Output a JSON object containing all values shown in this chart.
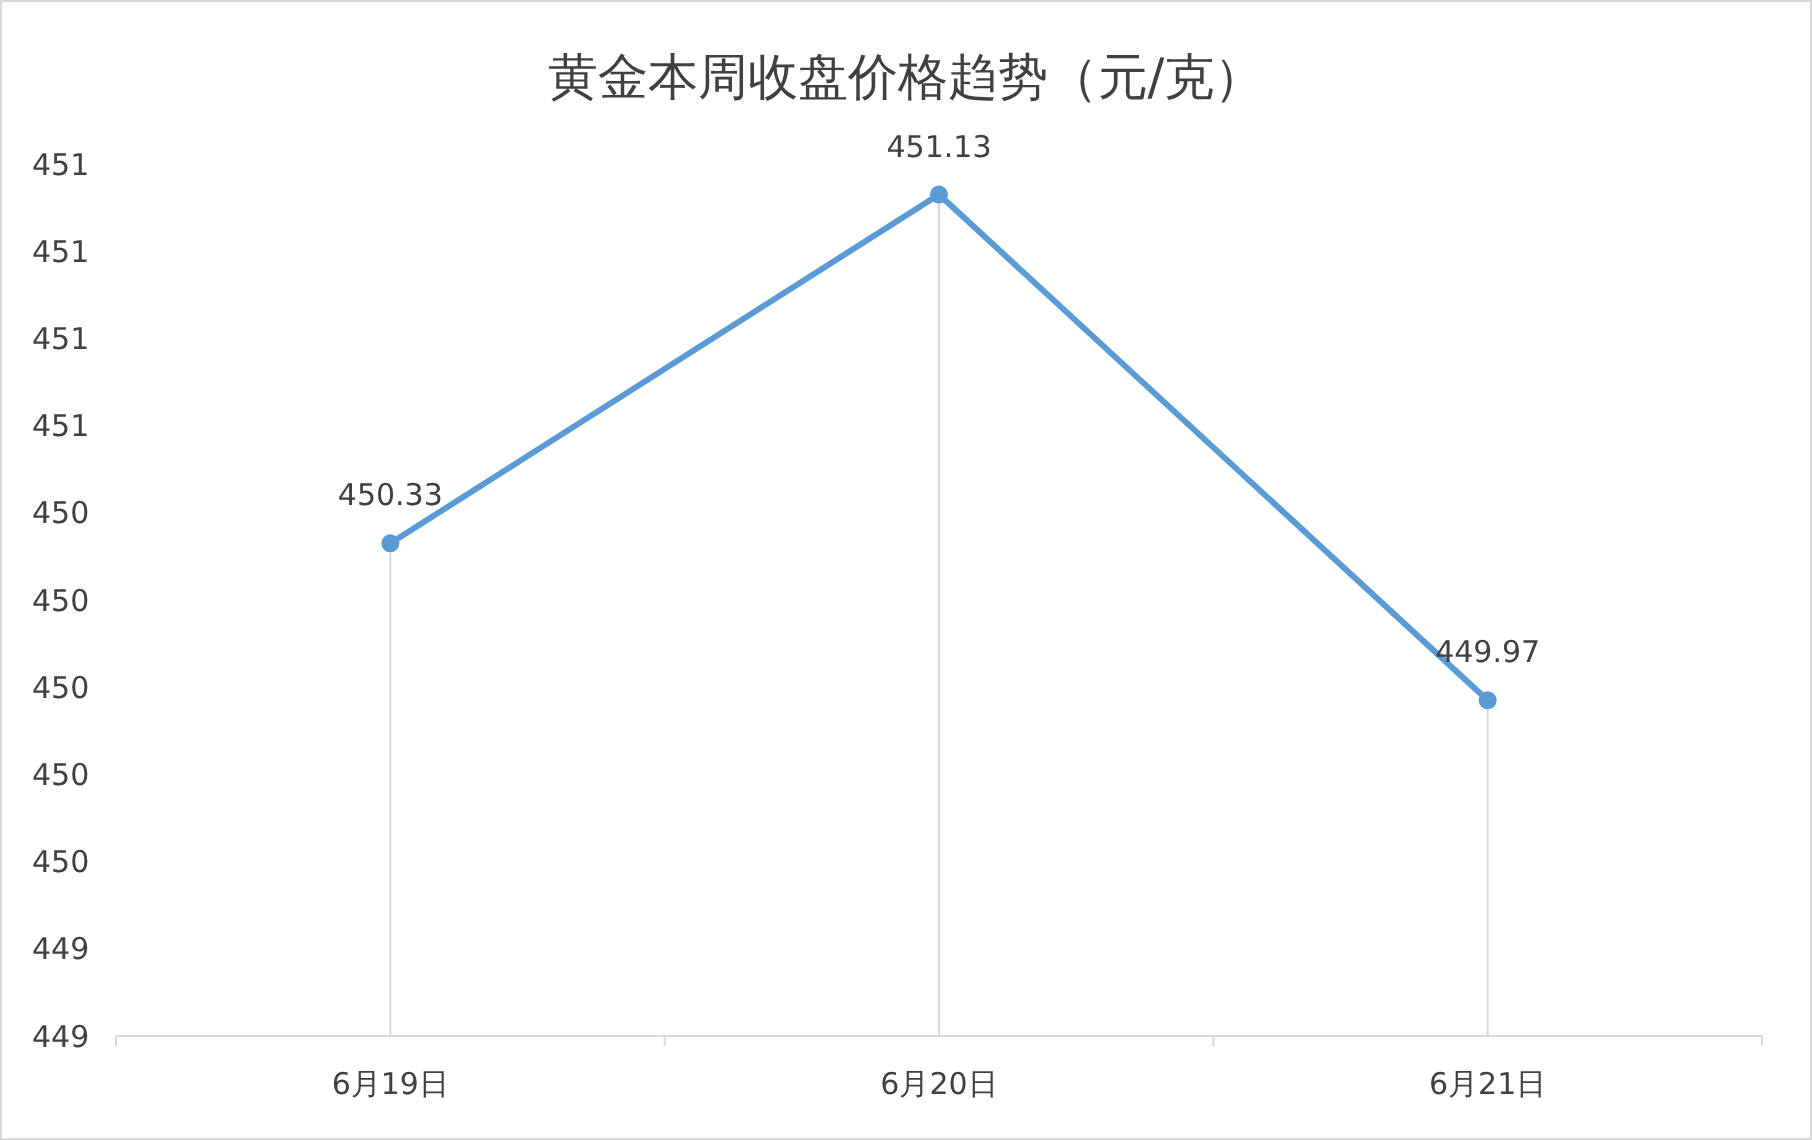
{
  "chart_data": {
    "type": "line",
    "title": "黄金本周收盘价格趋势（元/克）",
    "categories": [
      "6月19日",
      "6月20日",
      "6月21日"
    ],
    "series": [
      {
        "color": "#5b9bd5",
        "values": [
          450.33,
          451.13,
          449.97
        ]
      }
    ],
    "ylim": [
      449.2,
      451.2
    ],
    "yticks": [
      {
        "value": 449.2,
        "label": "449"
      },
      {
        "value": 449.4,
        "label": "449"
      },
      {
        "value": 449.6,
        "label": "450"
      },
      {
        "value": 449.8,
        "label": "450"
      },
      {
        "value": 450.0,
        "label": "450"
      },
      {
        "value": 450.2,
        "label": "450"
      },
      {
        "value": 450.4,
        "label": "450"
      },
      {
        "value": 450.6,
        "label": "451"
      },
      {
        "value": 450.8,
        "label": "451"
      },
      {
        "value": 451.0,
        "label": "451"
      },
      {
        "value": 451.2,
        "label": "451"
      }
    ],
    "grid": "x",
    "data_labels": true,
    "marker": "circle"
  }
}
